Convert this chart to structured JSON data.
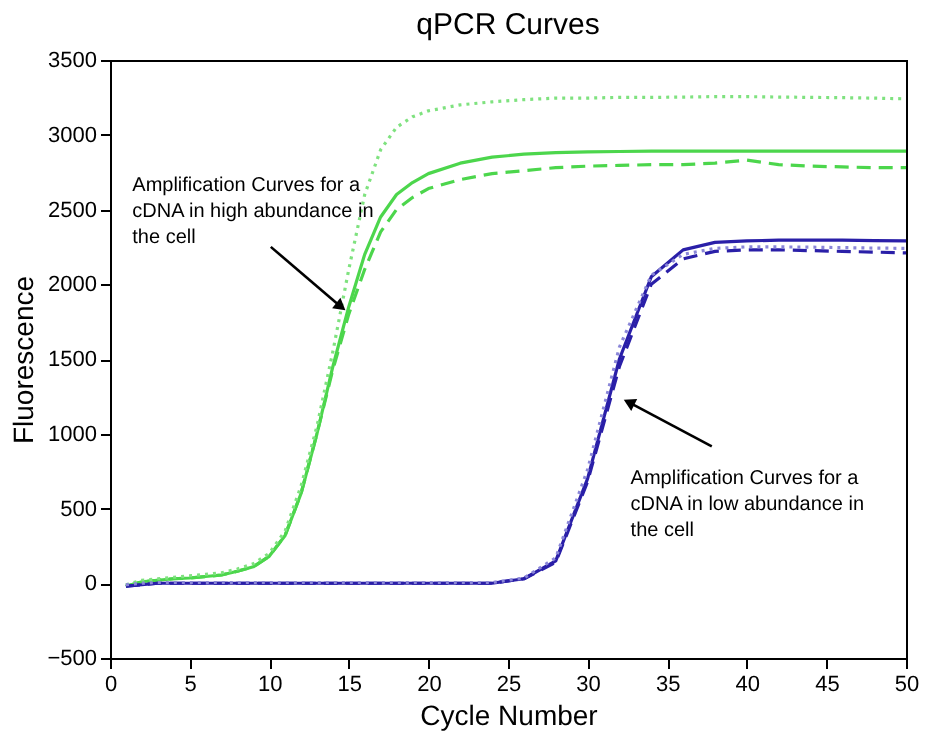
{
  "chart_data": {
    "type": "line",
    "title": "qPCR Curves",
    "xlabel": "Cycle Number",
    "ylabel": "Fluorescence",
    "xlim": [
      0,
      50
    ],
    "xticks": [
      0,
      5,
      10,
      15,
      20,
      25,
      30,
      35,
      40,
      45,
      50
    ],
    "ylim": [
      -500,
      3500
    ],
    "yticks": [
      -500,
      0,
      500,
      1000,
      1500,
      2000,
      2500,
      3000,
      3500
    ],
    "grid": false,
    "marker": "none",
    "x": [
      1,
      2,
      3,
      4,
      5,
      6,
      7,
      8,
      9,
      10,
      11,
      12,
      13,
      14,
      15,
      16,
      17,
      18,
      19,
      20,
      22,
      24,
      26,
      28,
      30,
      32,
      34,
      36,
      38,
      40,
      42,
      44,
      46,
      48,
      50
    ],
    "series": [
      {
        "color": "#4cd64c",
        "line_style": "solid",
        "values": [
          -20,
          10,
          20,
          30,
          35,
          45,
          55,
          80,
          110,
          180,
          320,
          600,
          1000,
          1450,
          1850,
          2200,
          2450,
          2600,
          2680,
          2740,
          2810,
          2850,
          2870,
          2880,
          2885,
          2888,
          2890,
          2890,
          2890,
          2890,
          2890,
          2890,
          2890,
          2890,
          2890
        ]
      },
      {
        "color": "#4cd64c",
        "line_style": "dashed",
        "values": [
          -20,
          10,
          20,
          30,
          35,
          45,
          55,
          80,
          110,
          180,
          320,
          600,
          1000,
          1430,
          1800,
          2100,
          2350,
          2500,
          2580,
          2640,
          2700,
          2740,
          2760,
          2780,
          2790,
          2795,
          2800,
          2800,
          2810,
          2830,
          2800,
          2790,
          2785,
          2780,
          2780
        ]
      },
      {
        "color": "#7fe27f",
        "line_style": "dotted",
        "values": [
          -10,
          20,
          30,
          40,
          50,
          60,
          70,
          95,
          130,
          200,
          350,
          650,
          1050,
          1550,
          2100,
          2600,
          2900,
          3050,
          3120,
          3160,
          3200,
          3220,
          3235,
          3245,
          3245,
          3250,
          3250,
          3252,
          3255,
          3255,
          3252,
          3250,
          3248,
          3245,
          3240
        ]
      },
      {
        "color": "#2a1fa8",
        "line_style": "solid",
        "values": [
          -20,
          -10,
          0,
          0,
          0,
          0,
          0,
          0,
          0,
          0,
          0,
          0,
          0,
          0,
          0,
          0,
          0,
          0,
          0,
          0,
          0,
          0,
          30,
          150,
          700,
          1500,
          2050,
          2230,
          2280,
          2290,
          2295,
          2295,
          2295,
          2292,
          2290
        ]
      },
      {
        "color": "#2a1fa8",
        "line_style": "dashed",
        "values": [
          -20,
          -10,
          0,
          0,
          0,
          0,
          0,
          0,
          0,
          0,
          0,
          0,
          0,
          0,
          0,
          0,
          0,
          0,
          0,
          0,
          0,
          0,
          30,
          140,
          680,
          1450,
          2000,
          2170,
          2220,
          2230,
          2230,
          2225,
          2220,
          2215,
          2210
        ]
      },
      {
        "color": "#8a86d8",
        "line_style": "dotted",
        "values": [
          -10,
          0,
          5,
          5,
          5,
          5,
          5,
          5,
          5,
          5,
          5,
          5,
          5,
          5,
          5,
          5,
          5,
          5,
          5,
          5,
          5,
          5,
          35,
          170,
          760,
          1580,
          2060,
          2200,
          2240,
          2250,
          2250,
          2248,
          2245,
          2242,
          2240
        ]
      }
    ],
    "annotations": [
      {
        "text": "Amplification Curves for a cDNA in high abundance in the cell",
        "x": 14.5,
        "y": 1850
      },
      {
        "text": "Amplification Curves for a cDNA in low abundance in the cell",
        "x": 32.6,
        "y": 1210
      }
    ]
  }
}
